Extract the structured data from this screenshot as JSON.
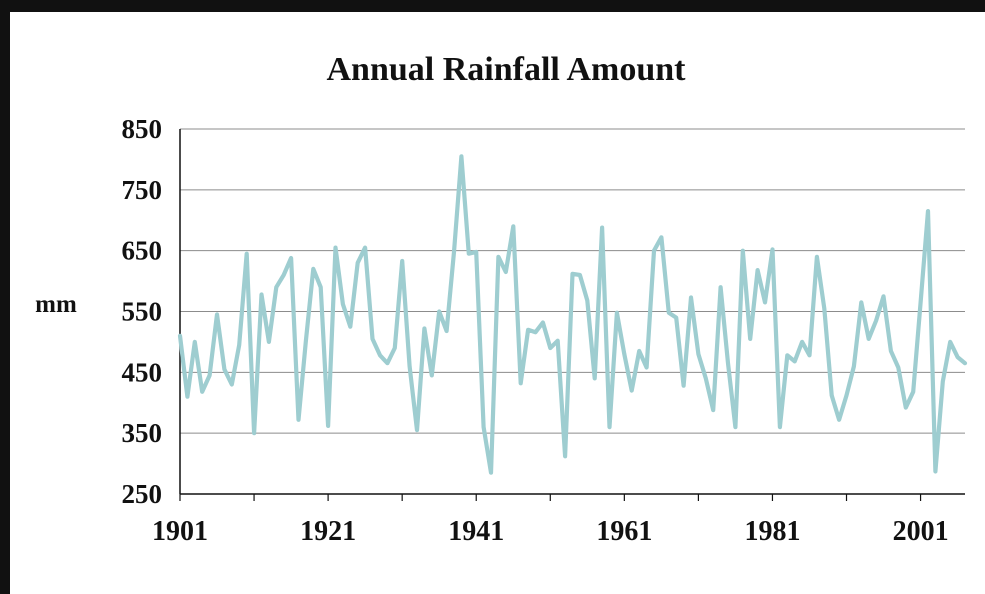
{
  "colors": {
    "line": "#9ecdd0",
    "grid": "#8c8c8c",
    "axis": "#111111",
    "background": "#ffffff",
    "frame": "#111111"
  },
  "chart_data": {
    "type": "line",
    "title": "Annual Rainfall Amount",
    "xlabel": "",
    "ylabel": "mm",
    "xlim": [
      1901,
      2007
    ],
    "ylim": [
      250,
      850
    ],
    "x_ticks": [
      "1901",
      "1921",
      "1941",
      "1961",
      "1981",
      "2001"
    ],
    "y_ticks": [
      "850",
      "750",
      "650",
      "550",
      "450",
      "350",
      "250"
    ],
    "grid": true,
    "legend": "none",
    "series": [
      {
        "x": [
          1901,
          1902,
          1903,
          1904,
          1905,
          1906,
          1907,
          1908,
          1909,
          1910,
          1911,
          1912,
          1913,
          1914,
          1915,
          1916,
          1917,
          1918,
          1919,
          1920,
          1921,
          1922,
          1923,
          1924,
          1925,
          1926,
          1927,
          1928,
          1929,
          1930,
          1931,
          1932,
          1933,
          1934,
          1935,
          1936,
          1937,
          1938,
          1939,
          1940,
          1941,
          1942,
          1943,
          1944,
          1945,
          1946,
          1947,
          1948,
          1949,
          1950,
          1951,
          1952,
          1953,
          1954,
          1955,
          1956,
          1957,
          1958,
          1959,
          1960,
          1961,
          1962,
          1963,
          1964,
          1965,
          1966,
          1967,
          1968,
          1969,
          1970,
          1971,
          1972,
          1973,
          1974,
          1975,
          1976,
          1977,
          1978,
          1979,
          1980,
          1981,
          1982,
          1983,
          1984,
          1985,
          1986,
          1987,
          1988,
          1989,
          1990,
          1991,
          1992,
          1993,
          1994,
          1995,
          1996,
          1997,
          1998,
          1999,
          2000,
          2001,
          2002,
          2003,
          2004,
          2005,
          2006,
          2007
        ],
        "values": [
          510,
          410,
          500,
          418,
          445,
          545,
          455,
          430,
          495,
          645,
          350,
          578,
          500,
          590,
          610,
          638,
          372,
          502,
          620,
          590,
          362,
          655,
          562,
          525,
          630,
          655,
          505,
          478,
          465,
          490,
          633,
          460,
          355,
          522,
          445,
          550,
          518,
          648,
          805,
          645,
          648,
          360,
          285,
          640,
          615,
          690,
          432,
          520,
          516,
          532,
          490,
          502,
          312,
          612,
          610,
          568,
          440,
          688,
          360,
          548,
          480,
          420,
          485,
          458,
          650,
          672,
          548,
          540,
          428,
          573,
          480,
          440,
          388,
          590,
          465,
          360,
          650,
          505,
          618,
          565,
          652,
          360,
          478,
          468,
          500,
          478,
          640,
          555,
          412,
          372,
          412,
          460,
          565,
          505,
          535,
          575,
          485,
          458,
          392,
          418,
          565,
          715,
          287,
          435,
          500,
          475,
          465
        ]
      }
    ]
  }
}
